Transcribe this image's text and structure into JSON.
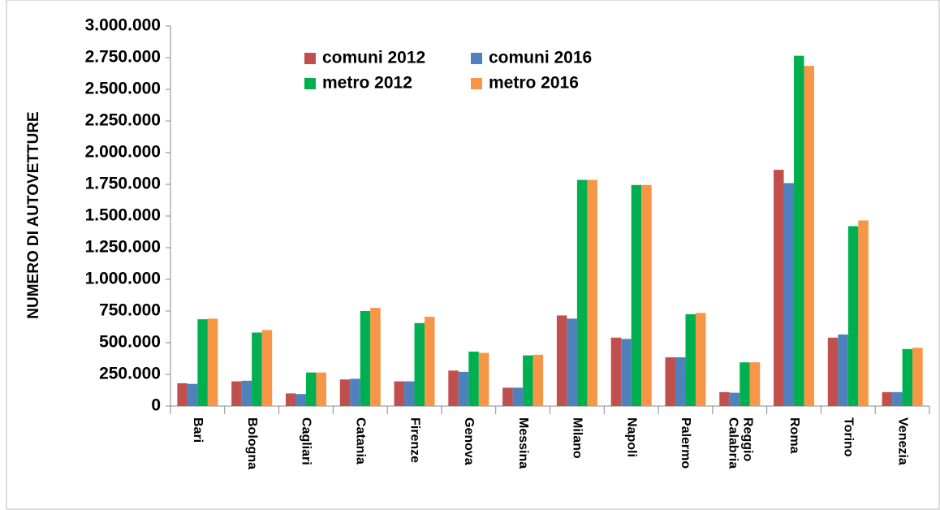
{
  "chart_data": {
    "type": "bar",
    "y_label": "NUMERO DI AUTOVETTURE",
    "categories": [
      "Bari",
      "Bologna",
      "Cagliari",
      "Catania",
      "Firenze",
      "Genova",
      "Messina",
      "Milano",
      "Napoli",
      "Palermo",
      "Reggio Calabria",
      "Roma",
      "Torino",
      "Venezia"
    ],
    "series": [
      {
        "name": "comuni 2012",
        "color": "#c0504d",
        "values": [
          180000,
          195000,
          100000,
          210000,
          195000,
          280000,
          145000,
          715000,
          540000,
          385000,
          110000,
          1865000,
          540000,
          110000
        ]
      },
      {
        "name": "comuni 2016",
        "color": "#4f81bd",
        "values": [
          175000,
          200000,
          95000,
          215000,
          195000,
          270000,
          145000,
          690000,
          530000,
          385000,
          105000,
          1760000,
          565000,
          110000
        ]
      },
      {
        "name": "metro 2012",
        "color": "#00b050",
        "values": [
          685000,
          580000,
          265000,
          750000,
          655000,
          430000,
          400000,
          1785000,
          1745000,
          725000,
          345000,
          2765000,
          1420000,
          450000
        ]
      },
      {
        "name": "metro 2016",
        "color": "#f79646",
        "values": [
          690000,
          600000,
          265000,
          775000,
          705000,
          420000,
          405000,
          1785000,
          1745000,
          735000,
          345000,
          2685000,
          1465000,
          460000
        ]
      }
    ],
    "ylim": [
      0,
      3000000
    ],
    "yticks": [
      0,
      {
        "value": 250000,
        "label": "250.000"
      },
      {
        "value": 500000,
        "label": "500.000"
      },
      {
        "value": 750000,
        "label": "750.000"
      },
      {
        "value": 1000000,
        "label": "1.000.000"
      },
      {
        "value": 1250000,
        "label": "1.250.000"
      },
      {
        "value": 1500000,
        "label": "1.500.000"
      },
      {
        "value": 1750000,
        "label": "1.750.000"
      },
      {
        "value": 2000000,
        "label": "2.000.000"
      },
      {
        "value": 2250000,
        "label": "2.250.000"
      },
      {
        "value": 2500000,
        "label": "2.500.000"
      },
      {
        "value": 2750000,
        "label": "2.750.000"
      },
      {
        "value": 3000000,
        "label": "3.000.000"
      }
    ],
    "legend": "top-left"
  }
}
